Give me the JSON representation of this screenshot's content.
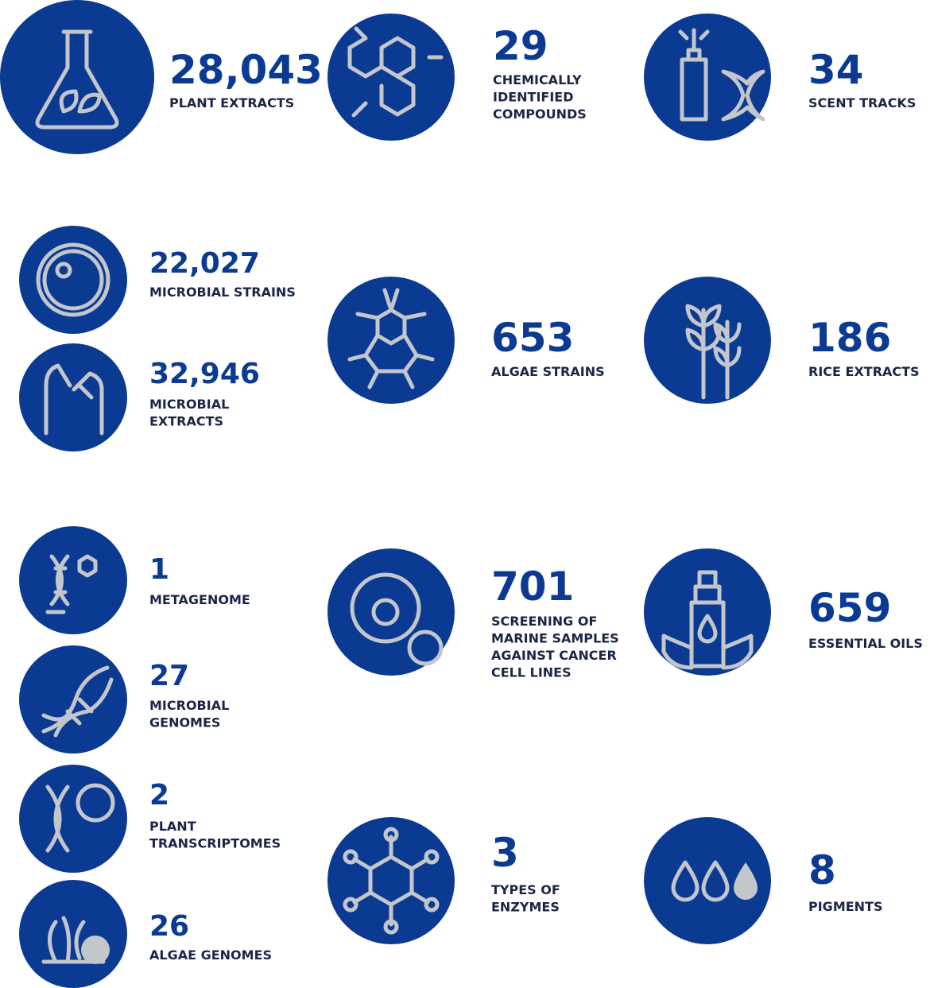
{
  "stats": [
    {
      "value": "28,043",
      "label": [
        "PLANT EXTRACTS"
      ]
    },
    {
      "value": "29",
      "label": [
        "CHEMICALLY",
        "IDENTIFIED",
        "COMPOUNDS"
      ]
    },
    {
      "value": "34",
      "label": [
        "SCENT TRACKS"
      ]
    },
    {
      "value": "22,027",
      "label": [
        "MICROBIAL STRAINS"
      ]
    },
    {
      "value": "32,946",
      "label": [
        "MICROBIAL",
        "EXTRACTS"
      ]
    },
    {
      "value": "653",
      "label": [
        "ALGAE STRAINS"
      ]
    },
    {
      "value": "186",
      "label": [
        "RICE EXTRACTS"
      ]
    },
    {
      "value": "1",
      "label": [
        "METAGENOME"
      ]
    },
    {
      "value": "27",
      "label": [
        "MICROBIAL",
        "GENOMES"
      ]
    },
    {
      "value": "2",
      "label": [
        "PLANT",
        "TRANSCRIPTOMES"
      ]
    },
    {
      "value": "26",
      "label": [
        "ALGAE GENOMES"
      ]
    },
    {
      "value": "701",
      "label": [
        "SCREENING OF",
        "MARINE SAMPLES",
        "AGAINST CANCER",
        "CELL LINES"
      ]
    },
    {
      "value": "659",
      "label": [
        "ESSENTIAL OILS"
      ]
    },
    {
      "value": "3",
      "label": [
        "TYPES OF",
        "ENZYMES"
      ]
    },
    {
      "value": "8",
      "label": [
        "PIGMENTS"
      ]
    }
  ]
}
